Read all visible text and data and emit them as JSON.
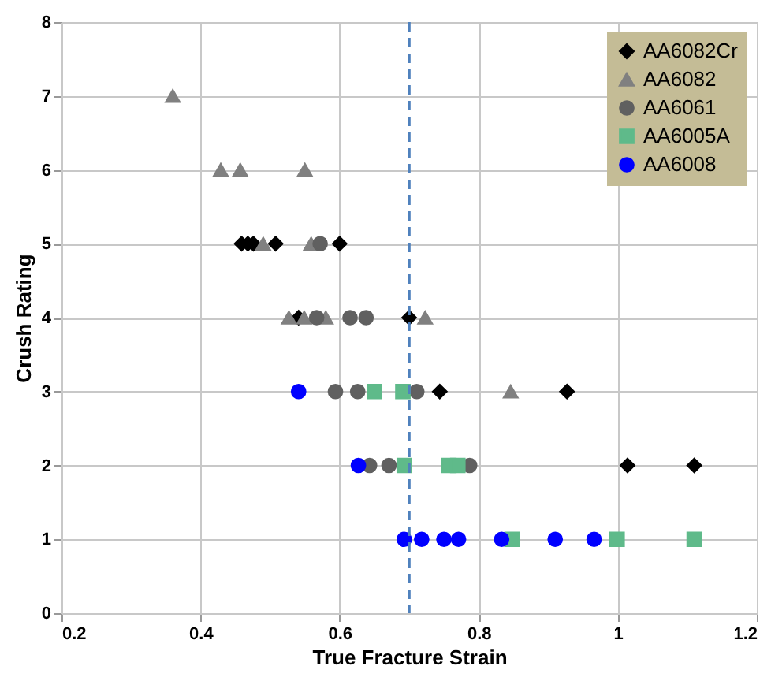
{
  "chart_data": {
    "type": "scatter",
    "xlabel": "True Fracture Strain",
    "ylabel": "Crush Rating",
    "xlim": [
      0.2,
      1.2
    ],
    "xticks": [
      0.2,
      0.4,
      0.6,
      0.8,
      1,
      1.2
    ],
    "ylim": [
      0,
      8
    ],
    "yticks": [
      0,
      1,
      2,
      3,
      4,
      5,
      6,
      7,
      8
    ],
    "grid": true,
    "legend": "top right",
    "ref_lines": [
      {
        "axis": "x",
        "value": 0.7,
        "label": null,
        "color": "#4f81bd",
        "line_style": "dashed"
      }
    ],
    "series": [
      {
        "name": "AA6082Cr",
        "color": "#000000",
        "marker": "diamond",
        "x": [
          0.459,
          0.468,
          0.476,
          0.508,
          0.6,
          0.541,
          0.7,
          0.744,
          0.927,
          1.014,
          1.11
        ],
        "values": [
          5,
          5,
          5,
          5,
          5,
          4,
          4,
          3,
          3,
          2,
          2
        ]
      },
      {
        "name": "AA6082",
        "color": "#808080",
        "marker": "triangle",
        "x": [
          0.36,
          0.429,
          0.457,
          0.55,
          0.49,
          0.559,
          0.527,
          0.549,
          0.58,
          0.723,
          0.846
        ],
        "values": [
          7,
          6,
          6,
          6,
          5,
          5,
          4,
          4,
          4,
          4,
          3
        ]
      },
      {
        "name": "AA6061",
        "color": "#606060",
        "marker": "circle",
        "x": [
          0.572,
          0.567,
          0.615,
          0.638,
          0.594,
          0.626,
          0.711,
          0.643,
          0.671,
          0.787
        ],
        "values": [
          5,
          4,
          4,
          4,
          3,
          3,
          3,
          2,
          2,
          2
        ]
      },
      {
        "name": "AA6005A",
        "color": "#5fba8a",
        "marker": "square",
        "x": [
          0.65,
          0.691,
          0.693,
          0.757,
          0.77,
          0.848,
          0.999,
          1.11
        ],
        "values": [
          3,
          3,
          2,
          2,
          2,
          1,
          1,
          1
        ]
      },
      {
        "name": "AA6008",
        "color": "#0000ff",
        "marker": "circle",
        "x": [
          0.541,
          0.627,
          0.693,
          0.718,
          0.75,
          0.771,
          0.833,
          0.91,
          0.966
        ],
        "values": [
          3,
          2,
          1,
          1,
          1,
          1,
          1,
          1,
          1
        ]
      }
    ]
  }
}
